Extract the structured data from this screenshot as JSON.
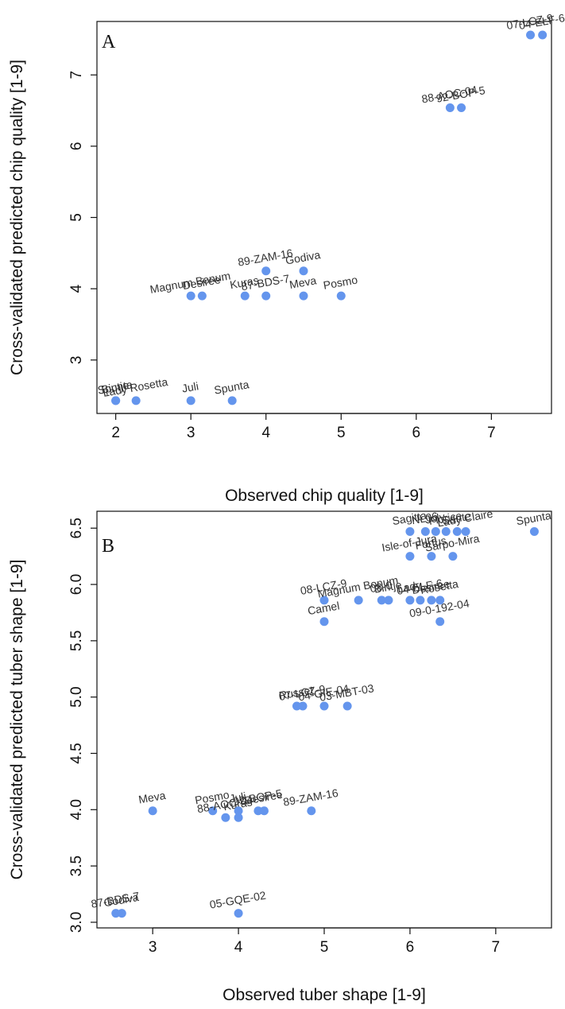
{
  "chart_data": [
    {
      "type": "scatter",
      "panel_label": "A",
      "xlabel": "Observed chip quality [1-9]",
      "ylabel": "Cross-validated predicted chip quality [1-9]",
      "xlim": [
        1.75,
        7.8
      ],
      "ylim": [
        2.25,
        7.75
      ],
      "xticks": [
        "2",
        "3",
        "4",
        "5",
        "6",
        "7"
      ],
      "yticks": [
        "3",
        "4",
        "5",
        "6",
        "7"
      ],
      "point_color": "#6495ED",
      "points": [
        {
          "x": 2.0,
          "y": 2.43,
          "label": "Bintje"
        },
        {
          "x": 2.0,
          "y": 2.43,
          "label": "Spunta"
        },
        {
          "x": 2.27,
          "y": 2.43,
          "label": "Lady Rosetta"
        },
        {
          "x": 3.0,
          "y": 2.43,
          "label": "Juli"
        },
        {
          "x": 3.55,
          "y": 2.43,
          "label": "Spunta"
        },
        {
          "x": 3.0,
          "y": 3.9,
          "label": "Magnum Bonum"
        },
        {
          "x": 3.15,
          "y": 3.9,
          "label": "Desiree"
        },
        {
          "x": 3.72,
          "y": 3.9,
          "label": "Kuras"
        },
        {
          "x": 4.0,
          "y": 4.25,
          "label": "89-ZAM-16"
        },
        {
          "x": 4.0,
          "y": 3.9,
          "label": "87-BDS-7"
        },
        {
          "x": 4.5,
          "y": 4.25,
          "label": "Godiva"
        },
        {
          "x": 4.5,
          "y": 3.9,
          "label": "Meva"
        },
        {
          "x": 5.0,
          "y": 3.9,
          "label": "Posmo"
        },
        {
          "x": 6.45,
          "y": 6.54,
          "label": "88-AOC-04"
        },
        {
          "x": 6.6,
          "y": 6.54,
          "label": "92-BOP-5"
        },
        {
          "x": 7.52,
          "y": 7.56,
          "label": "07-LCZ-9"
        },
        {
          "x": 7.68,
          "y": 7.56,
          "label": "04-ELF-6"
        }
      ]
    },
    {
      "type": "scatter",
      "panel_label": "B",
      "xlabel": "Observed tuber shape [1-9]",
      "ylabel": "Cross-validated predicted tuber shape [1-9]",
      "xlim": [
        2.35,
        7.65
      ],
      "ylim": [
        2.95,
        6.65
      ],
      "xticks": [
        "3",
        "4",
        "5",
        "6",
        "7"
      ],
      "yticks": [
        "3.0",
        "3.5",
        "4.0",
        "4.5",
        "5.0",
        "5.5",
        "6.0",
        "6.5"
      ],
      "point_color": "#6495ED",
      "points": [
        {
          "x": 2.57,
          "y": 3.08,
          "label": "87-BDS-7"
        },
        {
          "x": 2.64,
          "y": 3.08,
          "label": "Godiva"
        },
        {
          "x": 4.0,
          "y": 3.08,
          "label": "05-GQE-02"
        },
        {
          "x": 3.0,
          "y": 3.99,
          "label": "Meva"
        },
        {
          "x": 3.7,
          "y": 3.99,
          "label": "Posmo"
        },
        {
          "x": 3.85,
          "y": 3.93,
          "label": "88-AOC-04"
        },
        {
          "x": 4.0,
          "y": 3.93,
          "label": "Kuras"
        },
        {
          "x": 4.0,
          "y": 3.99,
          "label": "Juli"
        },
        {
          "x": 4.23,
          "y": 3.99,
          "label": "92-BOP-5"
        },
        {
          "x": 4.3,
          "y": 3.99,
          "label": "Desiree"
        },
        {
          "x": 4.85,
          "y": 3.99,
          "label": "89-ZAM-16"
        },
        {
          "x": 4.68,
          "y": 4.92,
          "label": "Russet"
        },
        {
          "x": 4.75,
          "y": 4.92,
          "label": "07-LCZ-9"
        },
        {
          "x": 5.0,
          "y": 4.92,
          "label": "04-GIE-04"
        },
        {
          "x": 5.27,
          "y": 4.92,
          "label": "03-MBT-03"
        },
        {
          "x": 5.0,
          "y": 5.67,
          "label": "Camel"
        },
        {
          "x": 5.0,
          "y": 5.86,
          "label": "08-LCZ-9"
        },
        {
          "x": 5.4,
          "y": 5.86,
          "label": "Magnum Bonum"
        },
        {
          "x": 5.67,
          "y": 5.86,
          "label": "08-0"
        },
        {
          "x": 5.75,
          "y": 5.86,
          "label": "Bintje"
        },
        {
          "x": 6.0,
          "y": 5.86,
          "label": "Lady"
        },
        {
          "x": 6.12,
          "y": 5.86,
          "label": "04-ELF-6"
        },
        {
          "x": 6.25,
          "y": 5.86,
          "label": "Desiree"
        },
        {
          "x": 6.35,
          "y": 5.86,
          "label": "Rosetta"
        },
        {
          "x": 6.35,
          "y": 5.67,
          "label": "09-0-192-04"
        },
        {
          "x": 6.0,
          "y": 6.25,
          "label": "Isle-of-Jura"
        },
        {
          "x": 6.25,
          "y": 6.25,
          "label": "Fortus"
        },
        {
          "x": 6.5,
          "y": 6.25,
          "label": "Sarpo-Mira"
        },
        {
          "x": 6.0,
          "y": 6.47,
          "label": "Sagitta"
        },
        {
          "x": 6.18,
          "y": 6.47,
          "label": "NL06"
        },
        {
          "x": 6.3,
          "y": 6.47,
          "label": "Joly"
        },
        {
          "x": 6.42,
          "y": 6.47,
          "label": "Florice"
        },
        {
          "x": 6.55,
          "y": 6.47,
          "label": "Sante"
        },
        {
          "x": 6.65,
          "y": 6.47,
          "label": "Lady Claire"
        },
        {
          "x": 7.45,
          "y": 6.47,
          "label": "Spunta"
        }
      ]
    }
  ]
}
